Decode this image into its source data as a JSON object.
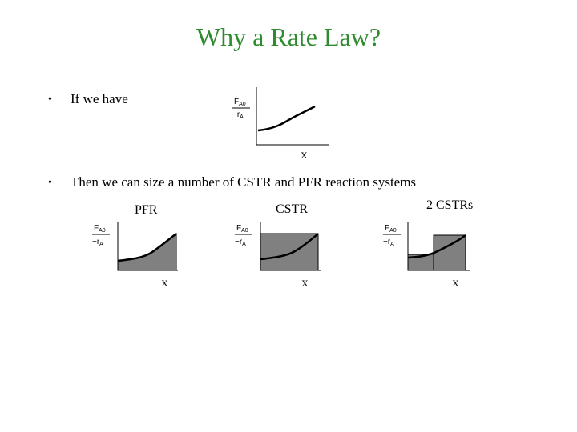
{
  "slide": {
    "title": "Why a Rate Law?",
    "bullets": [
      {
        "marker": "•",
        "text": "If we have"
      },
      {
        "marker": "•",
        "text": "Then we can size a number of CSTR and PFR reaction systems"
      }
    ]
  },
  "graphs": {
    "y_label_numerator": "F",
    "y_label_numerator_sub": "A0",
    "y_label_denominator": "−r",
    "y_label_denominator_sub": "A",
    "x_label": "X",
    "reactor_labels": {
      "pfr": "PFR",
      "cstr": "CSTR",
      "two_cstrs": "2 CSTRs"
    }
  },
  "colors": {
    "title": "#2e8b2e",
    "shading": "#808080",
    "curve": "#000000"
  }
}
